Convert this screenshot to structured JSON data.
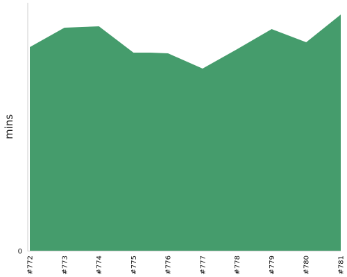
{
  "chart_data": {
    "type": "area",
    "title": "",
    "xlabel": "",
    "ylabel": "mins",
    "categories": [
      "#772",
      "#773",
      "#774",
      "#775",
      "#776",
      "#777",
      "#778",
      "#779",
      "#780",
      "#781"
    ],
    "x": [
      772,
      773,
      774,
      775,
      775.5,
      776,
      777,
      778,
      779,
      780,
      781
    ],
    "values": [
      294,
      322,
      324,
      286,
      286,
      285,
      263,
      291,
      320,
      301,
      341
    ],
    "y_ticks": [
      "0"
    ],
    "ylim": [
      0,
      358
    ],
    "grid": false,
    "legend": "none",
    "fill_color": "#459c6c",
    "axis_color": "#cfcfcf"
  }
}
